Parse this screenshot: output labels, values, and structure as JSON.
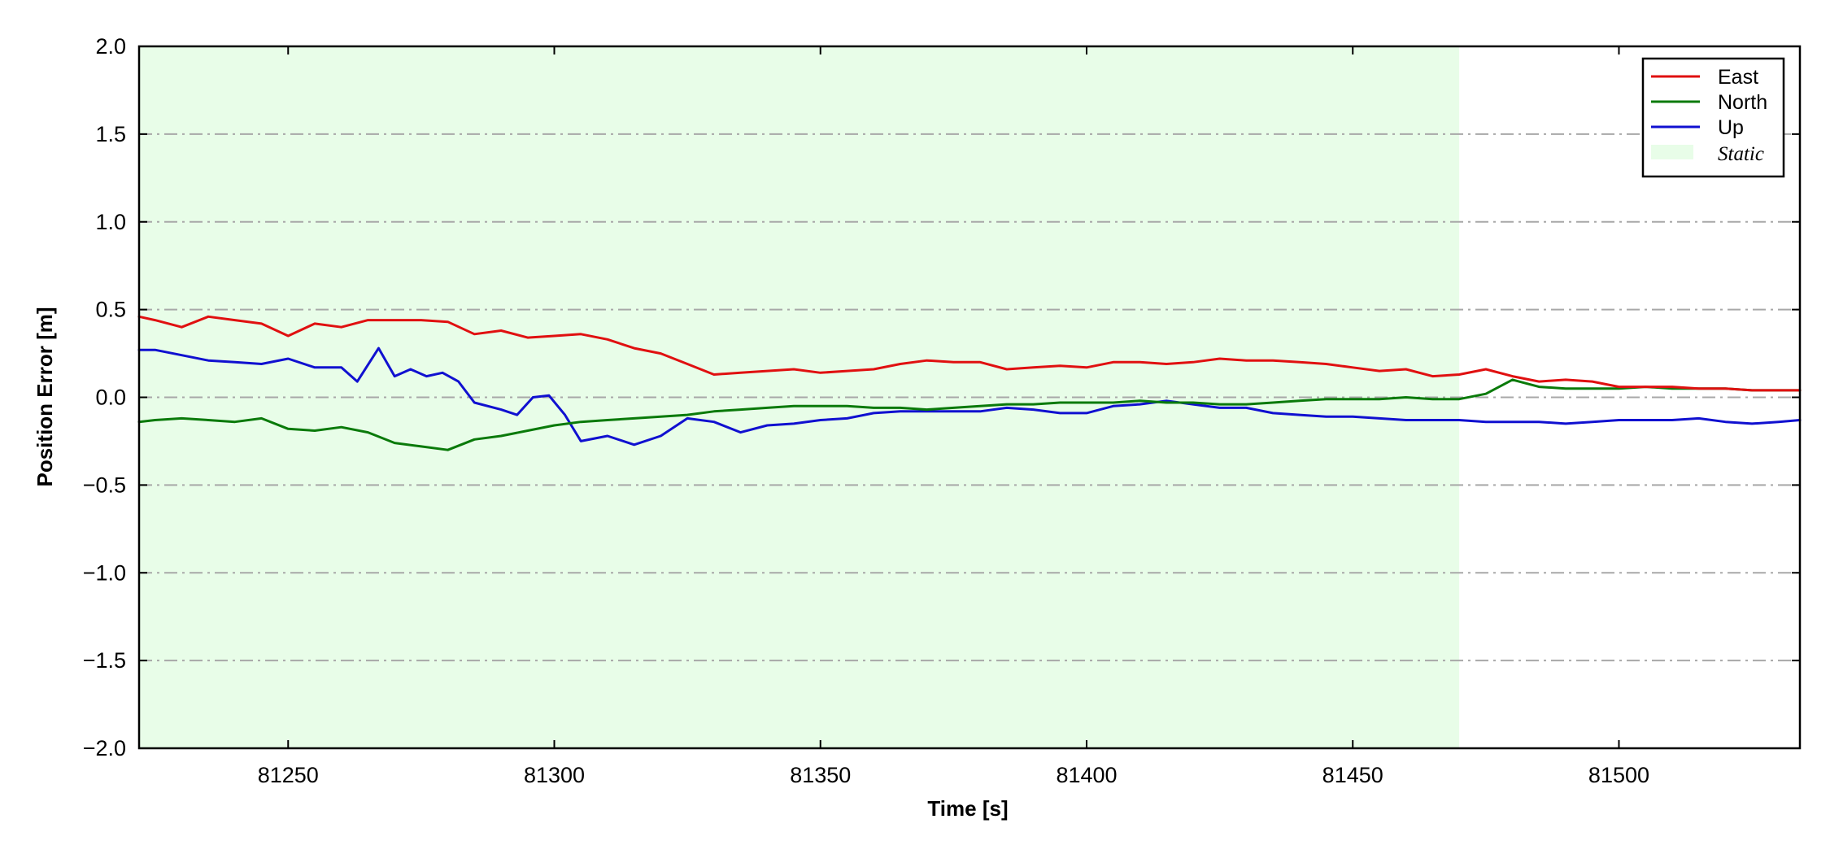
{
  "chart_data": {
    "type": "line",
    "xlabel": "Time [s]",
    "ylabel": "Position Error [m]",
    "xlim": [
      81222,
      81534
    ],
    "ylim": [
      -2.0,
      2.0
    ],
    "x_ticks": [
      81250,
      81300,
      81350,
      81400,
      81450,
      81500
    ],
    "y_ticks": [
      -2.0,
      -1.5,
      -1.0,
      -0.5,
      0.0,
      0.5,
      1.0,
      1.5,
      2.0
    ],
    "y_tick_labels": [
      "−2.0",
      "−1.5",
      "−1.0",
      "−0.5",
      "0.0",
      "0.5",
      "1.0",
      "1.5",
      "2.0"
    ],
    "grid": "horizontal dash-dot",
    "legend_position": "top-right",
    "shaded_region": {
      "label": "Static",
      "x_start": 81222,
      "x_end": 81470,
      "color": "#e8fde8"
    },
    "series": [
      {
        "name": "East",
        "color": "#e01010",
        "x": [
          81222,
          81225,
          81230,
          81235,
          81240,
          81245,
          81250,
          81255,
          81260,
          81265,
          81270,
          81275,
          81280,
          81285,
          81290,
          81295,
          81300,
          81305,
          81310,
          81315,
          81320,
          81325,
          81330,
          81335,
          81340,
          81345,
          81350,
          81355,
          81360,
          81365,
          81370,
          81375,
          81380,
          81385,
          81390,
          81395,
          81400,
          81405,
          81410,
          81415,
          81420,
          81425,
          81430,
          81435,
          81440,
          81445,
          81450,
          81455,
          81460,
          81465,
          81470,
          81475,
          81480,
          81485,
          81490,
          81495,
          81500,
          81505,
          81510,
          81515,
          81520,
          81525,
          81530,
          81534
        ],
        "values": [
          0.46,
          0.44,
          0.4,
          0.46,
          0.44,
          0.42,
          0.35,
          0.42,
          0.4,
          0.44,
          0.44,
          0.44,
          0.43,
          0.36,
          0.38,
          0.34,
          0.35,
          0.36,
          0.33,
          0.28,
          0.25,
          0.19,
          0.13,
          0.14,
          0.15,
          0.16,
          0.14,
          0.15,
          0.16,
          0.19,
          0.21,
          0.2,
          0.2,
          0.16,
          0.17,
          0.18,
          0.17,
          0.2,
          0.2,
          0.19,
          0.2,
          0.22,
          0.21,
          0.21,
          0.2,
          0.19,
          0.17,
          0.15,
          0.16,
          0.12,
          0.13,
          0.16,
          0.12,
          0.09,
          0.1,
          0.09,
          0.06,
          0.06,
          0.06,
          0.05,
          0.05,
          0.04,
          0.04,
          0.04
        ]
      },
      {
        "name": "North",
        "color": "#0a7a0a",
        "x": [
          81222,
          81225,
          81230,
          81235,
          81240,
          81245,
          81250,
          81255,
          81260,
          81265,
          81270,
          81275,
          81280,
          81285,
          81290,
          81295,
          81300,
          81305,
          81310,
          81315,
          81320,
          81325,
          81330,
          81335,
          81340,
          81345,
          81350,
          81355,
          81360,
          81365,
          81370,
          81375,
          81380,
          81385,
          81390,
          81395,
          81400,
          81405,
          81410,
          81415,
          81420,
          81425,
          81430,
          81435,
          81440,
          81445,
          81450,
          81455,
          81460,
          81465,
          81470,
          81475,
          81480,
          81485,
          81490,
          81495,
          81500,
          81505,
          81510,
          81515,
          81520,
          81525,
          81530,
          81534
        ],
        "values": [
          -0.14,
          -0.13,
          -0.12,
          -0.13,
          -0.14,
          -0.12,
          -0.18,
          -0.19,
          -0.17,
          -0.2,
          -0.26,
          -0.28,
          -0.3,
          -0.24,
          -0.22,
          -0.19,
          -0.16,
          -0.14,
          -0.13,
          -0.12,
          -0.11,
          -0.1,
          -0.08,
          -0.07,
          -0.06,
          -0.05,
          -0.05,
          -0.05,
          -0.06,
          -0.06,
          -0.07,
          -0.06,
          -0.05,
          -0.04,
          -0.04,
          -0.03,
          -0.03,
          -0.03,
          -0.02,
          -0.03,
          -0.03,
          -0.04,
          -0.04,
          -0.03,
          -0.02,
          -0.01,
          -0.01,
          -0.01,
          0.0,
          -0.01,
          -0.01,
          0.02,
          0.1,
          0.06,
          0.05,
          0.05,
          0.05,
          0.06,
          0.05,
          0.05,
          0.05,
          0.04,
          0.04,
          0.04
        ]
      },
      {
        "name": "Up",
        "color": "#1010d0",
        "x": [
          81222,
          81225,
          81230,
          81235,
          81240,
          81245,
          81250,
          81255,
          81260,
          81263,
          81267,
          81270,
          81273,
          81276,
          81279,
          81282,
          81285,
          81290,
          81293,
          81296,
          81299,
          81302,
          81305,
          81310,
          81315,
          81320,
          81325,
          81330,
          81335,
          81340,
          81345,
          81350,
          81355,
          81360,
          81365,
          81370,
          81375,
          81380,
          81385,
          81390,
          81395,
          81400,
          81405,
          81410,
          81415,
          81420,
          81425,
          81430,
          81435,
          81440,
          81445,
          81450,
          81455,
          81460,
          81465,
          81470,
          81475,
          81480,
          81485,
          81490,
          81495,
          81500,
          81505,
          81510,
          81515,
          81520,
          81525,
          81530,
          81534
        ],
        "values": [
          0.27,
          0.27,
          0.24,
          0.21,
          0.2,
          0.19,
          0.22,
          0.17,
          0.17,
          0.09,
          0.28,
          0.12,
          0.16,
          0.12,
          0.14,
          0.09,
          -0.03,
          -0.07,
          -0.1,
          0.0,
          0.01,
          -0.1,
          -0.25,
          -0.22,
          -0.27,
          -0.22,
          -0.12,
          -0.14,
          -0.2,
          -0.16,
          -0.15,
          -0.13,
          -0.12,
          -0.09,
          -0.08,
          -0.08,
          -0.08,
          -0.08,
          -0.06,
          -0.07,
          -0.09,
          -0.09,
          -0.05,
          -0.04,
          -0.02,
          -0.04,
          -0.06,
          -0.06,
          -0.09,
          -0.1,
          -0.11,
          -0.11,
          -0.12,
          -0.13,
          -0.13,
          -0.13,
          -0.14,
          -0.14,
          -0.14,
          -0.15,
          -0.14,
          -0.13,
          -0.13,
          -0.13,
          -0.12,
          -0.14,
          -0.15,
          -0.14,
          -0.13
        ]
      }
    ]
  }
}
